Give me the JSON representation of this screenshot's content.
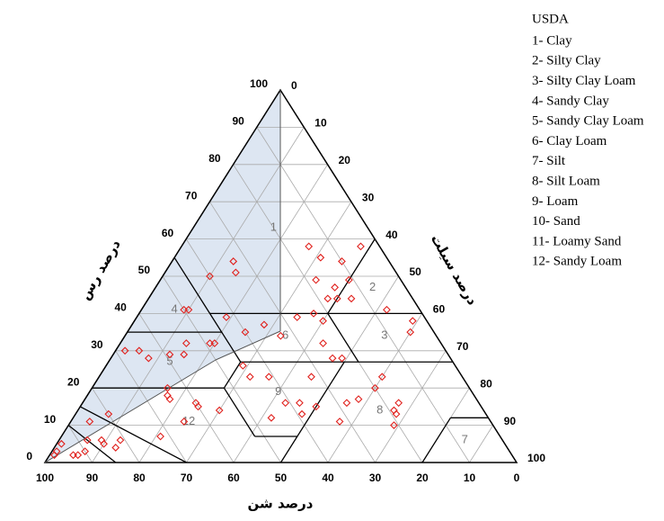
{
  "chart_data": {
    "type": "ternary",
    "legend_title": "USDA",
    "classes": [
      "1- Clay",
      "2- Silty Clay",
      "3- Silty Clay Loam",
      "4- Sandy Clay",
      "5- Sandy Clay Loam",
      "6- Clay Loam",
      "7- Silt",
      "8- Silt Loam",
      "9- Loam",
      "10- Sand",
      "11- Loamy Sand",
      "12- Sandy Loam"
    ],
    "region_labels": [
      "1",
      "2",
      "3",
      "4",
      "5",
      "6",
      "7",
      "8",
      "9",
      "12"
    ],
    "clay_label": "درصد رس",
    "silt_label": "درصد سیلت",
    "sand_label": "درصد شن",
    "clay_ticks": [
      0,
      10,
      20,
      30,
      40,
      50,
      60,
      70,
      80,
      90,
      100
    ],
    "silt_ticks": [
      0,
      10,
      20,
      30,
      40,
      50,
      60,
      70,
      80,
      90,
      100
    ],
    "sand_ticks": [
      0,
      10,
      20,
      30,
      40,
      50,
      60,
      70,
      80,
      90,
      100
    ],
    "grid": true,
    "color": "#e0201c",
    "sand": [
      15,
      4,
      14,
      10,
      40,
      33,
      34,
      18,
      15,
      11,
      18,
      16,
      13,
      50,
      49,
      42,
      35,
      27,
      23,
      22,
      7,
      3,
      5,
      40,
      54,
      49,
      48,
      33,
      25,
      68,
      65,
      59,
      56,
      25,
      23,
      64,
      45,
      45,
      41,
      32,
      17,
      64,
      65,
      65,
      60,
      60,
      56,
      41,
      38,
      28,
      25,
      20,
      17,
      19,
      19,
      46,
      39,
      35,
      80,
      85,
      88,
      85,
      85,
      83,
      81,
      65,
      32,
      21,
      94,
      96,
      97,
      93,
      92,
      90,
      72
    ],
    "clay": [
      58,
      58,
      55,
      54,
      50,
      54,
      51,
      49,
      47,
      49,
      44,
      44,
      44,
      41,
      41,
      39,
      37,
      39,
      40,
      38,
      41,
      38,
      35,
      35,
      32,
      32,
      32,
      34,
      32,
      30,
      30,
      29,
      29,
      28,
      28,
      28,
      26,
      23,
      23,
      23,
      23,
      20,
      18,
      17,
      16,
      15,
      14,
      16,
      16,
      16,
      17,
      20,
      16,
      14,
      13,
      12,
      13,
      15,
      13,
      11,
      6,
      6,
      5,
      4,
      6,
      11,
      11,
      10,
      5,
      3,
      2,
      2,
      2,
      3,
      7
    ]
  }
}
